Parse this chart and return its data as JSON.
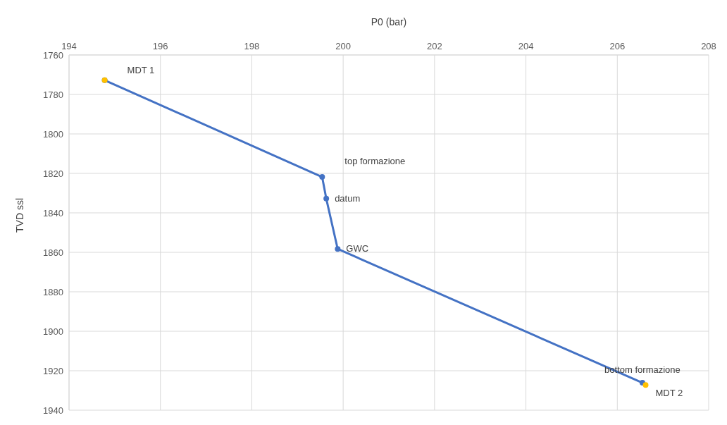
{
  "chart_data": {
    "type": "line",
    "xlabel": "P0 (bar)",
    "ylabel": "TVD ssl",
    "xlim": [
      194,
      208
    ],
    "xticks": [
      194,
      196,
      198,
      200,
      202,
      204,
      206,
      208
    ],
    "ylim": [
      1940,
      1760
    ],
    "yticks": [
      1760,
      1780,
      1800,
      1820,
      1840,
      1860,
      1880,
      1900,
      1920,
      1940
    ],
    "grid": true,
    "marker": "circle",
    "line_style": "solid",
    "series": [
      {
        "color": "#4472c4",
        "x": [
          194.78,
          199.54,
          199.63,
          199.88,
          206.55
        ],
        "values": [
          1772.8,
          1821.8,
          1832.8,
          1858.3,
          1926.1
        ]
      },
      {
        "type": "scatter",
        "color": "#ffc000",
        "x": [
          194.78,
          206.62
        ],
        "values": [
          1772.8,
          1927.2
        ]
      }
    ],
    "annotations": [
      {
        "text": "MDT 1",
        "x": 194.78,
        "y": 1772.8
      },
      {
        "text": "top formazione",
        "x": 199.54,
        "y": 1821.8
      },
      {
        "text": "datum",
        "x": 199.63,
        "y": 1832.8
      },
      {
        "text": "GWC",
        "x": 199.88,
        "y": 1858.3
      },
      {
        "text": "bottom formazione",
        "x": 206.55,
        "y": 1926.1
      },
      {
        "text": "MDT 2",
        "x": 206.62,
        "y": 1927.2
      }
    ]
  }
}
